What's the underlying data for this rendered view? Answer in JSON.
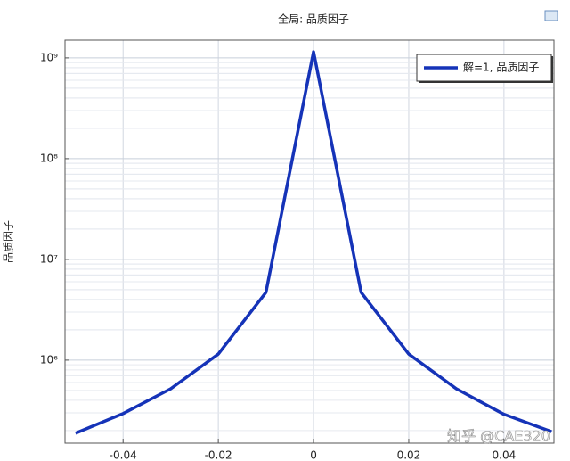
{
  "chart_data": {
    "type": "line",
    "title": "全局: 品质因子",
    "ylabel": "品质因子",
    "x": [
      -0.05,
      -0.04,
      -0.03,
      -0.02,
      -0.01,
      0,
      0.01,
      0.02,
      0.03,
      0.04,
      0.05
    ],
    "series": [
      {
        "name": "解=1, 品质因子",
        "color": "#1533b8",
        "values": [
          188000,
          295000,
          520000,
          1150000,
          4700000,
          1150000000,
          4700000,
          1150000,
          520000,
          290000,
          195000
        ]
      }
    ],
    "xlim": [
      -0.0522,
      0.0505
    ],
    "xticks": [
      -0.04,
      -0.02,
      0,
      0.02,
      0.04
    ],
    "ylim": [
      150000,
      1500000000
    ],
    "log_y": true,
    "yticks": [
      {
        "value": 1000000,
        "label": "10⁶"
      },
      {
        "value": 10000000,
        "label": "10⁷"
      },
      {
        "value": 100000000,
        "label": "10⁸"
      },
      {
        "value": 1000000000,
        "label": "10⁹"
      }
    ],
    "grid": true,
    "legend": "upper right",
    "watermark": "知乎 @CAE320"
  }
}
